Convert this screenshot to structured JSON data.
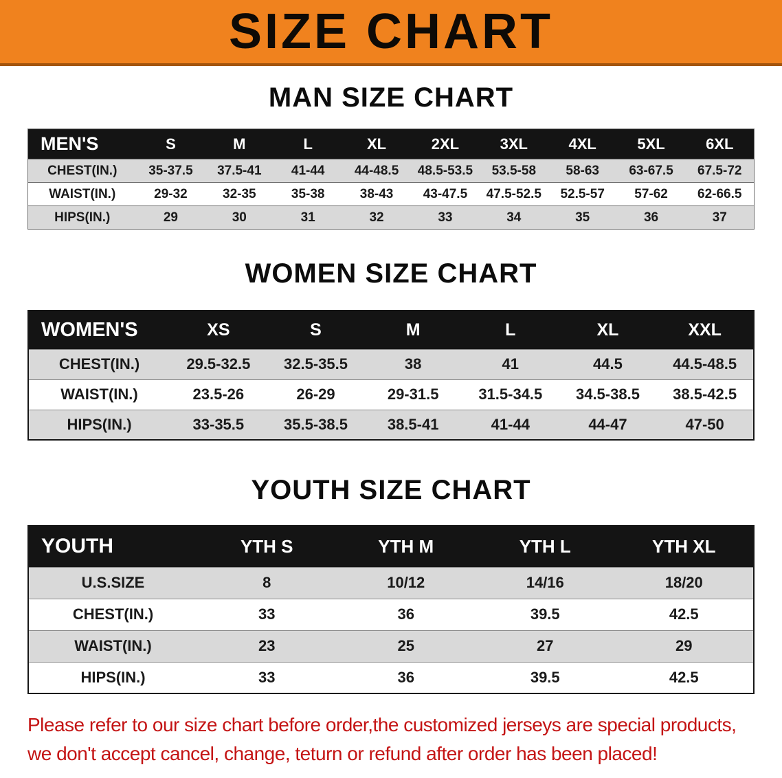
{
  "banner": {
    "title": "SIZE CHART",
    "bg_color": "#f0821e"
  },
  "chart_data": [
    {
      "type": "table",
      "title": "MAN SIZE CHART",
      "columns": [
        "MEN'S",
        "S",
        "M",
        "L",
        "XL",
        "2XL",
        "3XL",
        "4XL",
        "5XL",
        "6XL"
      ],
      "rows": [
        [
          "CHEST(IN.)",
          "35-37.5",
          "37.5-41",
          "41-44",
          "44-48.5",
          "48.5-53.5",
          "53.5-58",
          "58-63",
          "63-67.5",
          "67.5-72"
        ],
        [
          "WAIST(IN.)",
          "29-32",
          "32-35",
          "35-38",
          "38-43",
          "43-47.5",
          "47.5-52.5",
          "52.5-57",
          "57-62",
          "62-66.5"
        ],
        [
          "HIPS(IN.)",
          "29",
          "30",
          "31",
          "32",
          "33",
          "34",
          "35",
          "36",
          "37"
        ]
      ]
    },
    {
      "type": "table",
      "title": "WOMEN SIZE CHART",
      "columns": [
        "WOMEN'S",
        "XS",
        "S",
        "M",
        "L",
        "XL",
        "XXL"
      ],
      "rows": [
        [
          "CHEST(IN.)",
          "29.5-32.5",
          "32.5-35.5",
          "38",
          "41",
          "44.5",
          "44.5-48.5"
        ],
        [
          "WAIST(IN.)",
          "23.5-26",
          "26-29",
          "29-31.5",
          "31.5-34.5",
          "34.5-38.5",
          "38.5-42.5"
        ],
        [
          "HIPS(IN.)",
          "33-35.5",
          "35.5-38.5",
          "38.5-41",
          "41-44",
          "44-47",
          "47-50"
        ]
      ]
    },
    {
      "type": "table",
      "title": "YOUTH SIZE CHART",
      "columns": [
        "YOUTH",
        "YTH S",
        "YTH M",
        "YTH L",
        "YTH XL"
      ],
      "rows": [
        [
          "U.S.SIZE",
          "8",
          "10/12",
          "14/16",
          "18/20"
        ],
        [
          "CHEST(IN.)",
          "33",
          "36",
          "39.5",
          "42.5"
        ],
        [
          "WAIST(IN.)",
          "23",
          "25",
          "27",
          "29"
        ],
        [
          "HIPS(IN.)",
          "33",
          "36",
          "39.5",
          "42.5"
        ]
      ]
    }
  ],
  "note": {
    "line1": "Please refer to our size chart before order,the customized jerseys are special products,",
    "line2": "we don't accept cancel, change, teturn or refund after order has been placed!",
    "color": "#c41414"
  },
  "colors": {
    "banner_bg": "#f0821e",
    "table_header_bg": "#141414",
    "stripe_row_bg": "#d9d9d9",
    "page_bg": "#ffffff"
  }
}
